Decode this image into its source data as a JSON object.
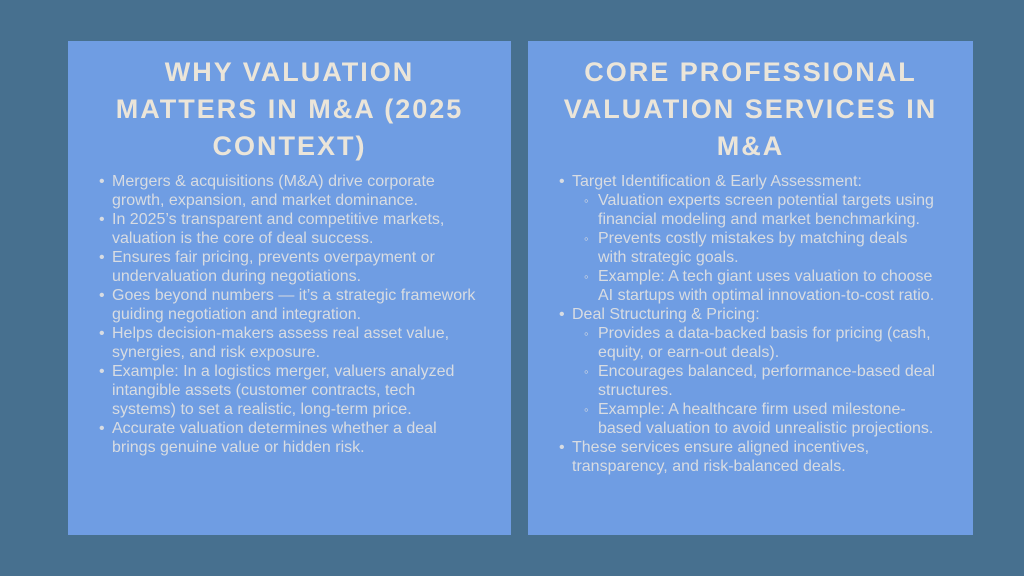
{
  "slide": {
    "background_color": "#47708f",
    "panel_color": "#6f9de3",
    "title_color": "#ebe5d9",
    "body_text_color": "#d8dce2"
  },
  "left_panel": {
    "title": "WHY VALUATION MATTERS IN M&A (2025 CONTEXT)",
    "title_lines": [
      "WHY VALUATION",
      "MATTERS IN M&A (2025",
      "CONTEXT)"
    ],
    "bullets": [
      "Mergers & acquisitions (M&A) drive corporate growth, expansion, and market dominance.",
      "In 2025’s transparent and competitive markets, valuation is the core of deal success.",
      "Ensures fair pricing, prevents overpayment or undervaluation during negotiations.",
      "Goes beyond numbers — it’s a strategic framework guiding negotiation and integration.",
      "Helps decision-makers assess real asset value, synergies, and risk exposure.",
      "Example: In a logistics merger, valuers analyzed intangible assets (customer contracts, tech systems) to set a realistic, long-term price.",
      "Accurate valuation determines whether a deal brings genuine value or hidden risk."
    ]
  },
  "right_panel": {
    "title": "CORE PROFESSIONAL VALUATION SERVICES IN M&A",
    "title_lines": [
      "CORE PROFESSIONAL",
      "VALUATION SERVICES IN",
      "M&A"
    ],
    "items": [
      {
        "text": "Target Identification & Early Assessment:",
        "sub_items": [
          "Valuation experts screen potential targets using financial modeling and market benchmarking.",
          "Prevents costly mistakes by matching deals with strategic goals.",
          "Example: A tech giant uses valuation to choose AI startups with optimal innovation-to-cost ratio."
        ]
      },
      {
        "text": "Deal Structuring & Pricing:",
        "sub_items": [
          "Provides a data-backed basis for pricing (cash, equity, or earn-out deals).",
          "Encourages balanced, performance-based deal structures.",
          "Example: A healthcare firm used milestone-based valuation to avoid unrealistic projections."
        ]
      },
      {
        "text": "These services ensure aligned incentives, transparency, and risk-balanced deals.",
        "sub_items": []
      }
    ]
  }
}
